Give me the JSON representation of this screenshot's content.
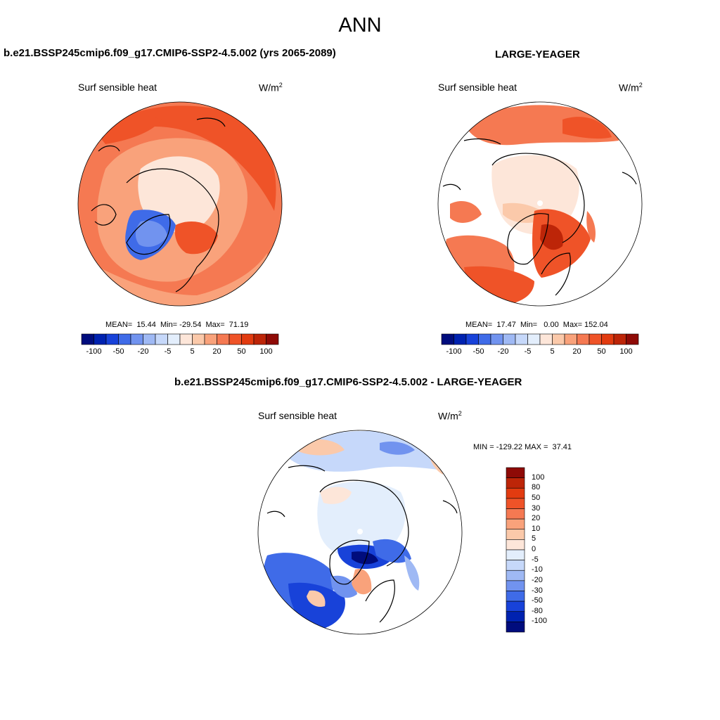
{
  "title": "ANN",
  "colors": {
    "scale": [
      "#000c7d",
      "#0022b0",
      "#1842d9",
      "#3f6be8",
      "#7193ef",
      "#9fb9f4",
      "#c6d8fa",
      "#e3eefc",
      "#fde6d9",
      "#fbc9aa",
      "#f9a27b",
      "#f57952",
      "#ef5328",
      "#e23b10",
      "#bd2508",
      "#8e0a06"
    ],
    "diff_scale": [
      "#000c7d",
      "#0022b0",
      "#1842d9",
      "#3f6be8",
      "#7193ef",
      "#9fb9f4",
      "#c6d8fa",
      "#e3eefc",
      "#fde6d9",
      "#fbc9aa",
      "#f9a27b",
      "#f57952",
      "#ef5328",
      "#e23b10",
      "#bd2508",
      "#8e0a06"
    ]
  },
  "panel_left": {
    "case": "b.e21.BSSP245cmip6.f09_g17.CMIP6-SSP2-4.5.002 (yrs 2065-2089)",
    "variable": "Surf sensible heat",
    "units": "W/m",
    "units_exp": "2",
    "stats": "MEAN=  15.44  Min= -29.54  Max=  71.19",
    "ticks": [
      "-100",
      "-50",
      "-20",
      "-5",
      "5",
      "20",
      "50",
      "100"
    ]
  },
  "panel_right": {
    "case": "LARGE-YEAGER",
    "variable": "Surf sensible heat",
    "units": "W/m",
    "units_exp": "2",
    "stats": "MEAN=  17.47  Min=   0.00  Max= 152.04",
    "ticks": [
      "-100",
      "-50",
      "-20",
      "-5",
      "5",
      "20",
      "50",
      "100"
    ]
  },
  "panel_diff": {
    "case": "b.e21.BSSP245cmip6.f09_g17.CMIP6-SSP2-4.5.002 - LARGE-YEAGER",
    "variable": "Surf sensible heat",
    "units": "W/m",
    "units_exp": "2",
    "minmax": "MIN = -129.22 MAX =  37.41",
    "ticks": [
      "100",
      "80",
      "50",
      "30",
      "20",
      "10",
      "5",
      "0",
      "-5",
      "-10",
      "-20",
      "-30",
      "-50",
      "-80",
      "-100"
    ]
  }
}
